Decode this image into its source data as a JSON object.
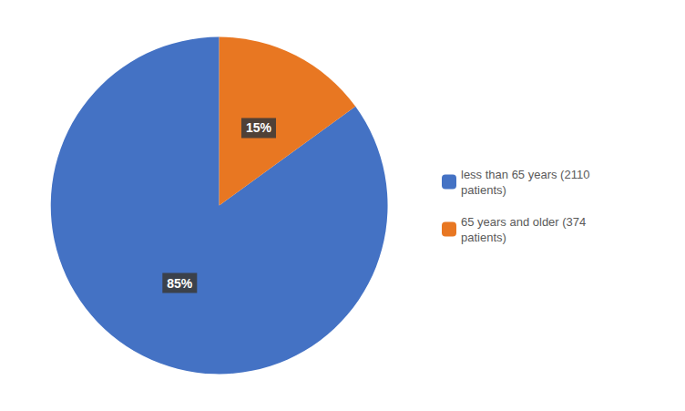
{
  "chart_data": {
    "type": "pie",
    "categories": [
      "less than 65 years (2110\npatients)",
      "65 years and older (374\npatients)"
    ],
    "values": [
      85,
      15
    ],
    "value_labels": [
      "85%",
      "15%"
    ],
    "colors": [
      "#4472C4",
      "#E87722"
    ],
    "data_labels": true,
    "legend": "right"
  }
}
